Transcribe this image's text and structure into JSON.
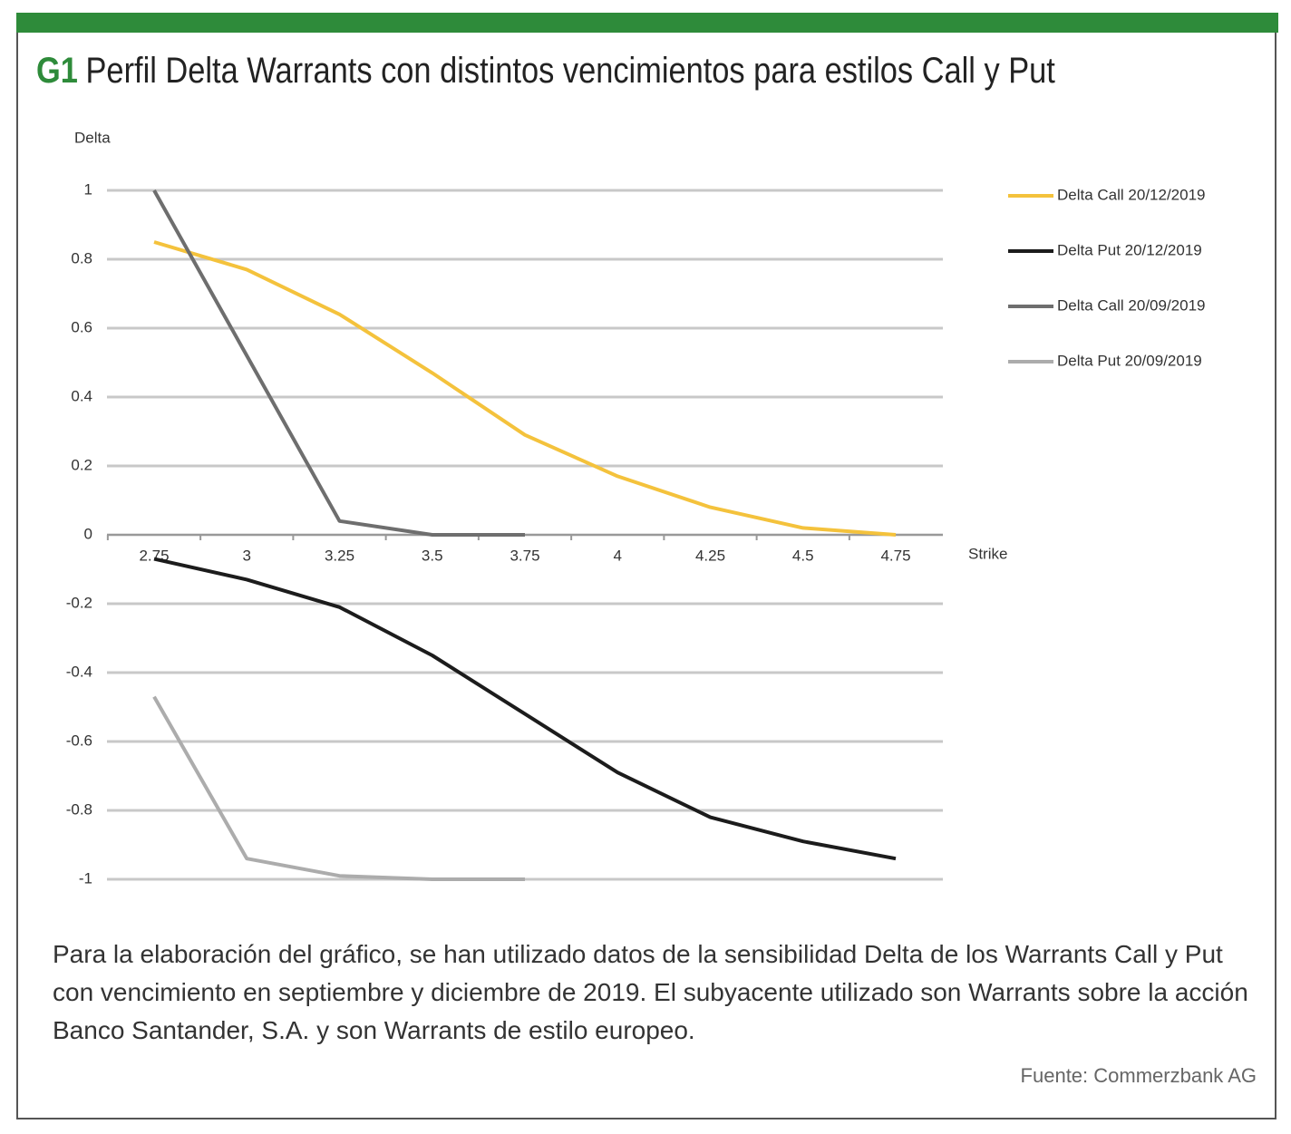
{
  "header": {
    "code": "G1",
    "title": "Perfil Delta Warrants con distintos vencimientos para estilos Call y Put"
  },
  "chart_data": {
    "type": "line",
    "y_label": "Delta",
    "x_label": "Strike",
    "categories": [
      "2.75",
      "3",
      "3.25",
      "3.5",
      "3.75",
      "4",
      "4.25",
      "4.5",
      "4.75"
    ],
    "ylim": [
      -1,
      1
    ],
    "yticks": [
      1,
      0.8,
      0.6,
      0.4,
      0.2,
      0,
      -0.2,
      -0.4,
      -0.6,
      -0.8,
      -1
    ],
    "grid": true,
    "legend": "right",
    "series": [
      {
        "name": "Delta Call 20/12/2019",
        "color": "#f4c23c",
        "values": [
          0.85,
          0.77,
          0.64,
          0.47,
          0.29,
          0.17,
          0.08,
          0.02,
          0
        ]
      },
      {
        "name": "Delta Put 20/12/2019",
        "color": "#1c1c1c",
        "values": [
          -0.07,
          -0.13,
          -0.21,
          -0.35,
          -0.52,
          -0.69,
          -0.82,
          -0.89,
          -0.94
        ]
      },
      {
        "name": "Delta Call 20/09/2019",
        "color": "#6e6e6e",
        "values": [
          1,
          0.52,
          0.04,
          0,
          0,
          null,
          null,
          null,
          null
        ]
      },
      {
        "name": "Delta Put 20/09/2019",
        "color": "#acacac",
        "values": [
          -0.47,
          -0.94,
          -0.99,
          -1,
          -1,
          null,
          null,
          null,
          null
        ]
      }
    ]
  },
  "body": "Para la elaboración del gráfico, se han utilizado datos de la sensibilidad Delta de los Warrants Call y Put con vencimiento en septiembre y diciembre de 2019. El subyacente utilizado son Warrants sobre la acción Banco Santander, S.A. y son Warrants de estilo europeo.",
  "source": "Fuente:  Commerzbank AG"
}
